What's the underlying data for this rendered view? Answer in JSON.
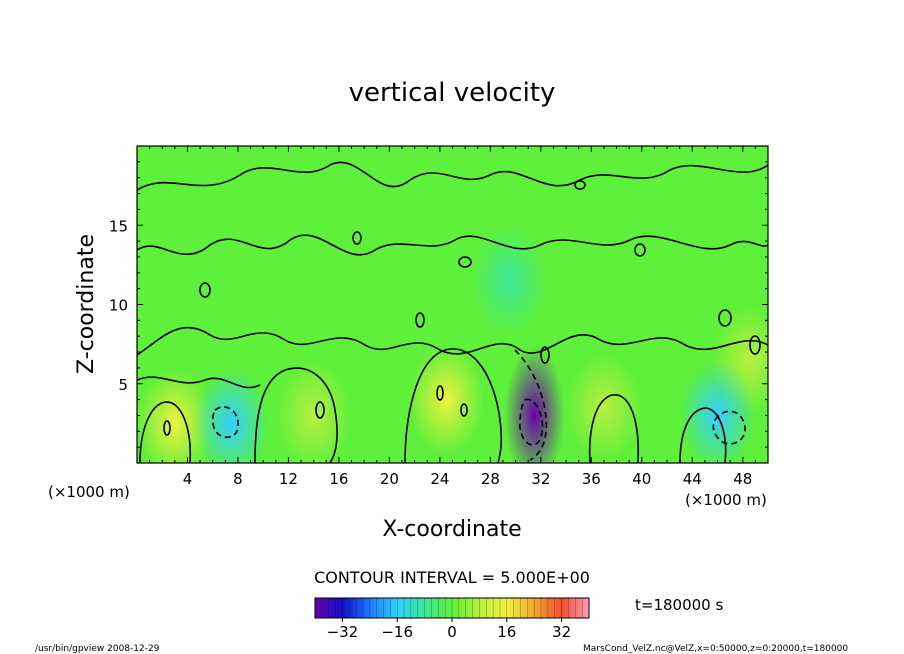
{
  "chart_data": {
    "type": "heatmap",
    "title": "vertical velocity",
    "xlabel": "X-coordinate",
    "ylabel": "Z-coordinate",
    "x_unit": "(×1000 m)",
    "y_unit": "(×1000 m)",
    "xlim": [
      0,
      50
    ],
    "ylim": [
      0,
      20
    ],
    "x_ticks": [
      4,
      8,
      12,
      16,
      20,
      24,
      28,
      32,
      36,
      40,
      44,
      48
    ],
    "y_ticks": [
      5,
      10,
      15
    ],
    "contour_interval_label": "CONTOUR INTERVAL = 5.000E+00",
    "time_label": "t=180000 s",
    "colorbar": {
      "range": [
        -40,
        40
      ],
      "ticks": [
        -32,
        -16,
        0,
        16,
        32
      ],
      "colors": [
        "#6a00a8",
        "#1010c8",
        "#1e78ff",
        "#30d0ff",
        "#40e89a",
        "#5ef03a",
        "#b8f040",
        "#f0f040",
        "#f0a830",
        "#f05030",
        "#ff9cb4"
      ]
    },
    "field_features": [
      {
        "x": 24.5,
        "z": 4.0,
        "w": 10
      },
      {
        "x": 14.0,
        "z": 3.0,
        "w": 8
      },
      {
        "x": 3.0,
        "z": 2.5,
        "w": 12
      },
      {
        "x": 37.0,
        "z": 3.5,
        "w": 6
      },
      {
        "x": 48.5,
        "z": 6.5,
        "w": 6
      },
      {
        "x": 31.5,
        "z": 3.0,
        "w": -28
      },
      {
        "x": 7.5,
        "z": 2.5,
        "w": -10
      },
      {
        "x": 46.0,
        "z": 3.0,
        "w": -14
      },
      {
        "x": 29.5,
        "z": 11.5,
        "w": -6
      }
    ]
  },
  "footer": {
    "left": "/usr/bin/gpview   2008-12-29",
    "right": "MarsCond_VelZ.nc@VelZ,x=0:50000,z=0:20000,t=180000"
  }
}
